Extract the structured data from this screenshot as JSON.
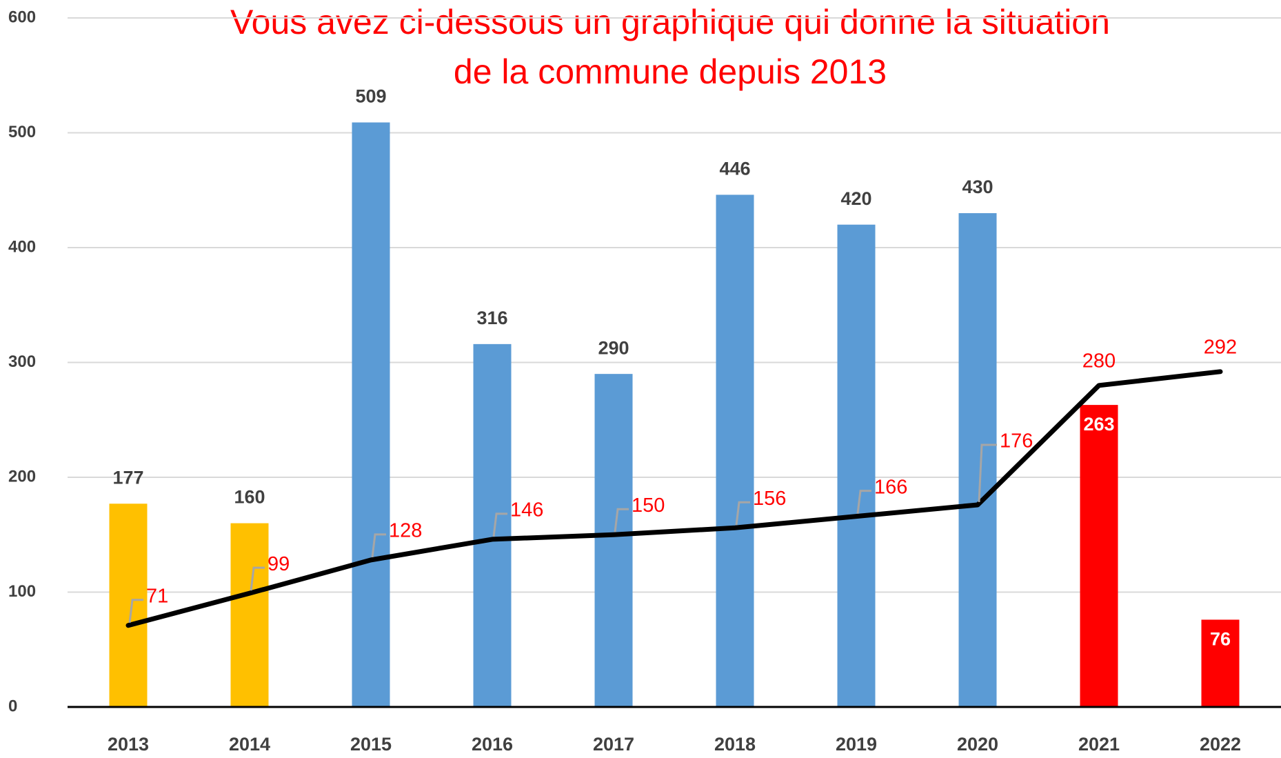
{
  "chart_data": {
    "type": "bar",
    "title": [
      "Vous avez ci-dessous un graphique qui donne la situation",
      "de la commune depuis 2013"
    ],
    "categories": [
      "2013",
      "2014",
      "2015",
      "2016",
      "2017",
      "2018",
      "2019",
      "2020",
      "2021",
      "2022"
    ],
    "series": [
      {
        "type": "bar",
        "colors": [
          "#ffc000",
          "#ffc000",
          "#5b9bd5",
          "#5b9bd5",
          "#5b9bd5",
          "#5b9bd5",
          "#5b9bd5",
          "#5b9bd5",
          "#ff0000",
          "#ff0000"
        ],
        "values": [
          177,
          160,
          509,
          316,
          290,
          446,
          420,
          430,
          263,
          76
        ]
      },
      {
        "type": "line",
        "color": "#000000",
        "values": [
          71,
          99,
          128,
          146,
          150,
          156,
          166,
          176,
          280,
          292
        ]
      }
    ],
    "ylim": [
      0,
      600
    ],
    "yticks": [
      0,
      100,
      200,
      300,
      400,
      500,
      600
    ],
    "grid": true
  }
}
